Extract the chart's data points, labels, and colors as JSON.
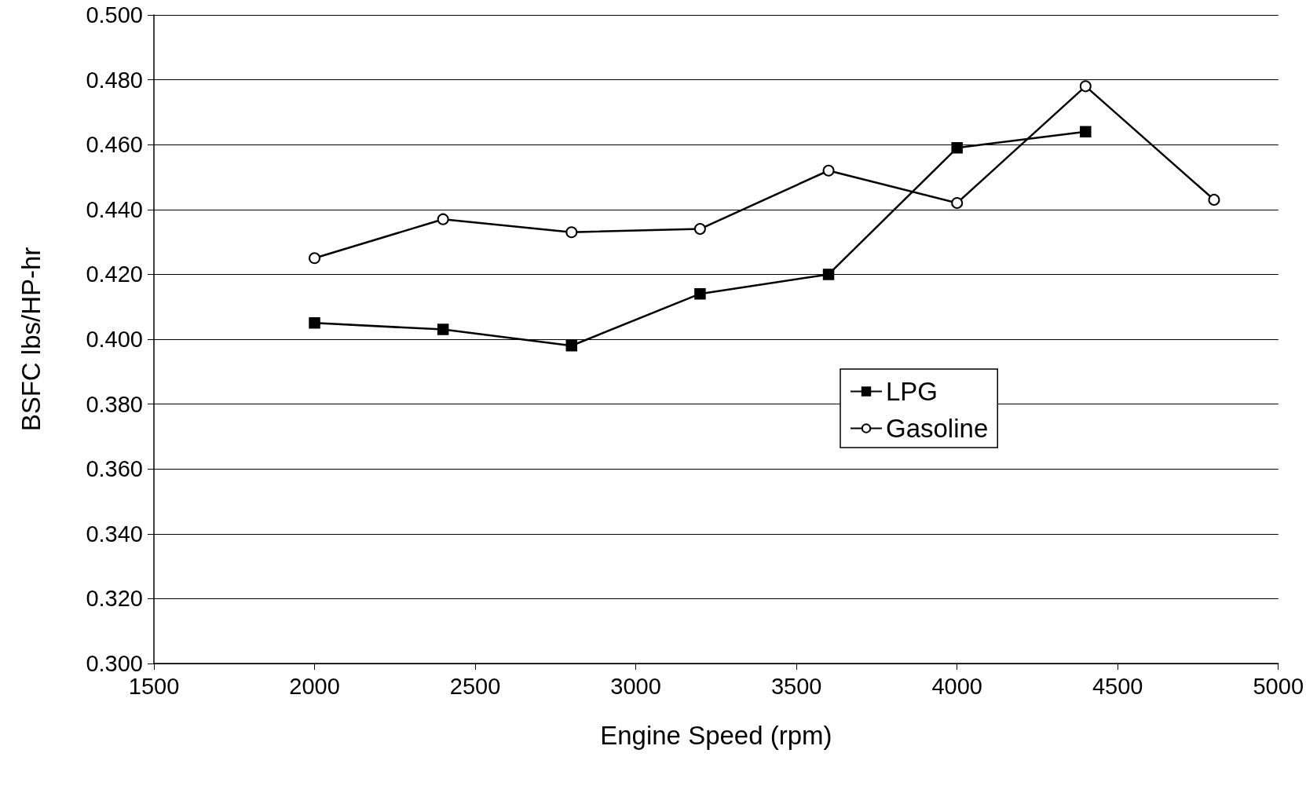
{
  "chart_data": {
    "type": "line",
    "xlabel": "Engine Speed (rpm)",
    "ylabel": "BSFC lbs/HP-hr",
    "x": [
      2000,
      2400,
      2800,
      3200,
      3600,
      4000,
      4400,
      4800
    ],
    "series": [
      {
        "name": "LPG",
        "color": "#000000",
        "marker": "square",
        "values": [
          0.405,
          0.403,
          0.398,
          0.414,
          0.42,
          0.459,
          0.464,
          null
        ]
      },
      {
        "name": "Gasoline",
        "color": "#000000",
        "marker": "circle",
        "values": [
          0.425,
          0.437,
          0.433,
          0.434,
          0.452,
          0.442,
          0.478,
          0.443
        ]
      }
    ],
    "xlim": [
      1500,
      5000
    ],
    "xticks": [
      1500,
      2000,
      2500,
      3000,
      3500,
      4000,
      4500,
      5000
    ],
    "ylim": [
      0.3,
      0.5
    ],
    "yticks": [
      {
        "value": 0.3,
        "label": "0.300"
      },
      {
        "value": 0.32,
        "label": "0.320"
      },
      {
        "value": 0.34,
        "label": "0.340"
      },
      {
        "value": 0.36,
        "label": "0.360"
      },
      {
        "value": 0.38,
        "label": "0.380"
      },
      {
        "value": 0.4,
        "label": "0.400"
      },
      {
        "value": 0.42,
        "label": "0.420"
      },
      {
        "value": 0.44,
        "label": "0.440"
      },
      {
        "value": 0.46,
        "label": "0.460"
      },
      {
        "value": 0.48,
        "label": "0.480"
      },
      {
        "value": 0.5,
        "label": "0.500"
      }
    ],
    "grid": "y",
    "legend": "right",
    "line_style": "solid"
  }
}
